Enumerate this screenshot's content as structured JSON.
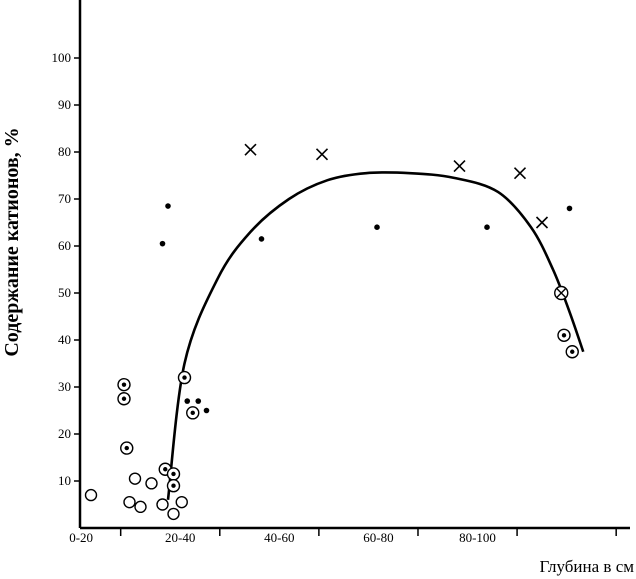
{
  "chart_data": {
    "type": "scatter",
    "title": "",
    "ylabel": "Содержание катионов, %",
    "xlabel": "Глубина в см",
    "ylim": [
      0,
      110
    ],
    "yticks": [
      10,
      20,
      30,
      40,
      50,
      60,
      70,
      80,
      90,
      100
    ],
    "ytick_labels": [
      "10",
      "20",
      "30",
      "40",
      "50",
      "60",
      "70",
      "80",
      "90",
      "100"
    ],
    "xtick_labels": [
      "0-20",
      "20-40",
      "40-60",
      "60-80",
      "80-100"
    ],
    "grid": false,
    "series": [
      {
        "marker": "open-circle",
        "points": [
          [
            2,
            7
          ],
          [
            9,
            5.5
          ],
          [
            10,
            10.5
          ],
          [
            11,
            4.5
          ],
          [
            13,
            9.5
          ],
          [
            15,
            5
          ],
          [
            17,
            3
          ],
          [
            18.5,
            5.5
          ]
        ]
      },
      {
        "marker": "dotted-circle",
        "points": [
          [
            8,
            30.5
          ],
          [
            8,
            27.5
          ],
          [
            8.5,
            17
          ],
          [
            15.5,
            12.5
          ],
          [
            17,
            11.5
          ],
          [
            17,
            9
          ],
          [
            19,
            32
          ],
          [
            20.5,
            24.5
          ],
          [
            88,
            41
          ],
          [
            89.5,
            37.5
          ]
        ]
      },
      {
        "marker": "filled-dot",
        "points": [
          [
            15,
            60.5
          ],
          [
            16,
            68.5
          ],
          [
            19.5,
            27
          ],
          [
            21.5,
            27
          ],
          [
            23,
            25
          ],
          [
            33,
            61.5
          ],
          [
            54,
            64
          ],
          [
            74,
            64
          ],
          [
            89,
            68
          ]
        ]
      },
      {
        "marker": "cross",
        "points": [
          [
            31,
            80.5
          ],
          [
            44,
            79.5
          ],
          [
            69,
            77
          ],
          [
            80,
            75.5
          ],
          [
            84,
            65
          ]
        ]
      },
      {
        "marker": "circle-cross",
        "points": [
          [
            87.5,
            50
          ]
        ]
      }
    ],
    "trend_line": [
      [
        16,
        6
      ],
      [
        19,
        35
      ],
      [
        25,
        53
      ],
      [
        31,
        63
      ],
      [
        38,
        70
      ],
      [
        45,
        74
      ],
      [
        52,
        75.5
      ],
      [
        60,
        75.5
      ],
      [
        68,
        74.5
      ],
      [
        76,
        71.5
      ],
      [
        82,
        64
      ],
      [
        86,
        55
      ],
      [
        89,
        46
      ],
      [
        91.5,
        37.5
      ]
    ]
  }
}
